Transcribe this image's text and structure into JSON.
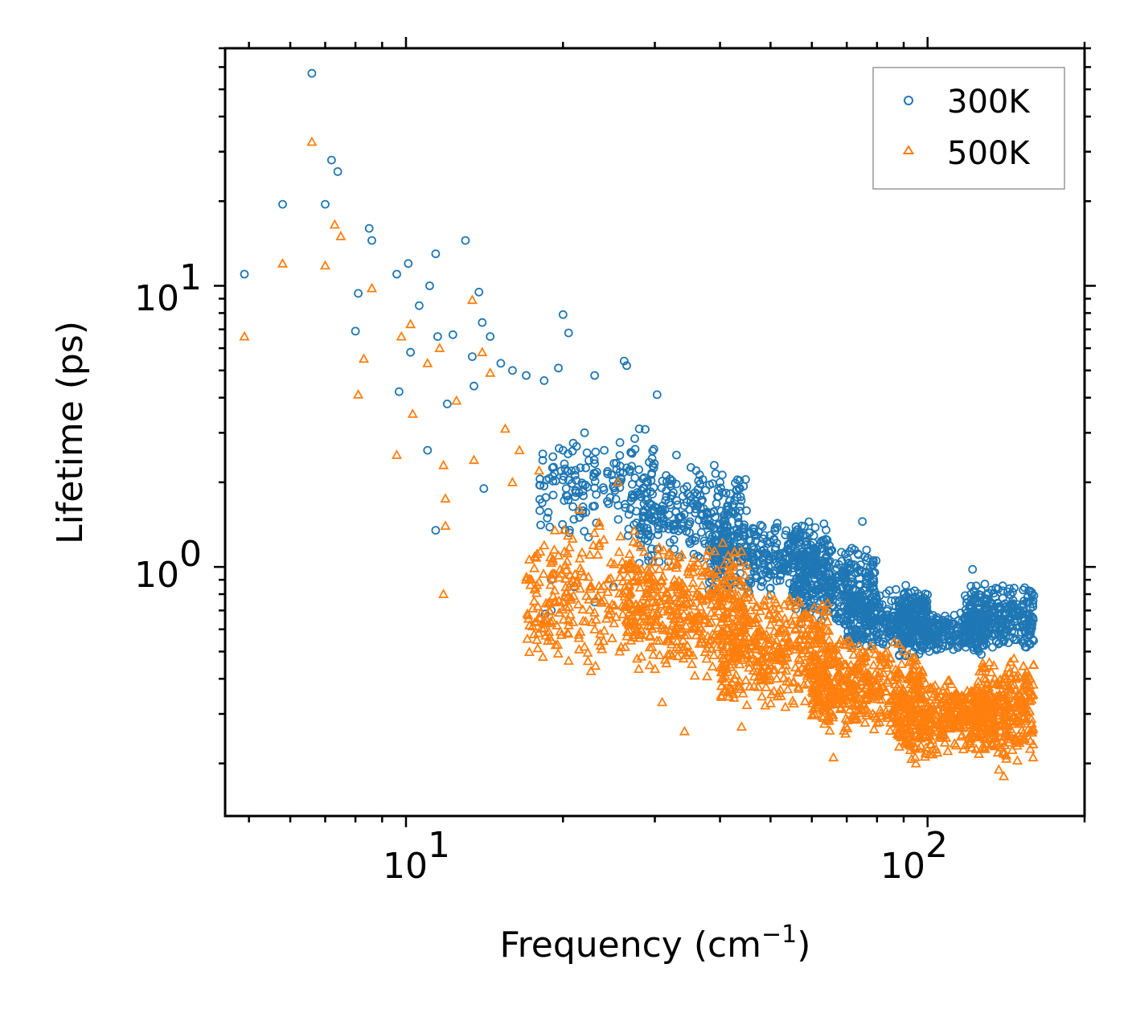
{
  "chart_data": {
    "type": "scatter",
    "xscale": "log",
    "yscale": "log",
    "xlim": [
      4.5,
      200
    ],
    "ylim": [
      0.13,
      70
    ],
    "xlabel": "Frequency (cm",
    "xlabel_sup": "−1",
    "xlabel_end": ")",
    "ylabel": "Lifetime (ps)",
    "x_ticks": [
      {
        "value": 10,
        "base": "10",
        "exp": "1"
      },
      {
        "value": 100,
        "base": "10",
        "exp": "2"
      }
    ],
    "y_ticks": [
      {
        "value": 1,
        "base": "10",
        "exp": "0"
      },
      {
        "value": 10,
        "base": "10",
        "exp": "1"
      }
    ],
    "legend": {
      "position": "top-right"
    },
    "series": [
      {
        "name": "300K",
        "marker": "circle",
        "color": "#1f77b4",
        "points": [
          [
            4.9,
            11.0
          ],
          [
            5.8,
            19.5
          ],
          [
            6.6,
            57.0
          ],
          [
            7.2,
            28.0
          ],
          [
            7.4,
            25.5
          ],
          [
            7.0,
            19.5
          ],
          [
            8.5,
            16.0
          ],
          [
            8.6,
            14.5
          ],
          [
            8.1,
            9.4
          ],
          [
            8.0,
            6.9
          ],
          [
            9.6,
            11.0
          ],
          [
            10.1,
            12.0
          ],
          [
            10.6,
            8.5
          ],
          [
            11.1,
            10.0
          ],
          [
            11.4,
            13.0
          ],
          [
            11.5,
            6.6
          ],
          [
            12.3,
            6.7
          ],
          [
            13.0,
            14.5
          ],
          [
            13.4,
            5.6
          ],
          [
            13.8,
            9.5
          ],
          [
            14.0,
            7.4
          ],
          [
            14.5,
            6.6
          ],
          [
            9.7,
            4.2
          ],
          [
            10.2,
            5.8
          ],
          [
            11.0,
            2.6
          ],
          [
            11.4,
            1.35
          ],
          [
            12.0,
            3.8
          ],
          [
            13.5,
            4.4
          ],
          [
            14.1,
            1.9
          ],
          [
            15.2,
            5.3
          ],
          [
            16.0,
            5.0
          ],
          [
            17.0,
            4.8
          ],
          [
            18.4,
            4.6
          ],
          [
            20.0,
            7.9
          ],
          [
            20.5,
            6.8
          ],
          [
            19.6,
            5.1
          ],
          [
            22.0,
            3.0
          ],
          [
            23.0,
            4.8
          ],
          [
            26.2,
            5.4
          ],
          [
            26.5,
            5.2
          ],
          [
            30.3,
            4.1
          ],
          [
            39.0,
            2.3
          ],
          [
            43.5,
            1.9
          ],
          [
            75.0,
            1.45
          ],
          [
            122.0,
            0.98
          ],
          [
            20.0,
            2.6
          ],
          [
            24.0,
            2.6
          ],
          [
            28.0,
            3.1
          ],
          [
            33.0,
            2.5
          ],
          [
            36.0,
            2.2
          ],
          [
            40.0,
            2.0
          ],
          [
            19.0,
            0.9
          ],
          [
            21.0,
            0.85
          ],
          [
            19.0,
            0.7
          ],
          [
            18.5,
            0.68
          ],
          [
            23.0,
            0.75
          ],
          [
            25.0,
            0.85
          ],
          [
            28.0,
            1.3
          ],
          [
            21.5,
            1.5
          ],
          [
            35.0,
            1.6
          ]
        ],
        "bands": [
          {
            "x": [
              18,
              30
            ],
            "y": [
              1.2,
              3.2
            ],
            "n": 170
          },
          {
            "x": [
              28,
              45
            ],
            "y": [
              1.0,
              2.3
            ],
            "n": 260
          },
          {
            "x": [
              38,
              65
            ],
            "y": [
              0.78,
              1.5
            ],
            "n": 380
          },
          {
            "x": [
              55,
              80
            ],
            "y": [
              0.6,
              1.2
            ],
            "n": 320
          },
          {
            "x": [
              70,
              100
            ],
            "y": [
              0.5,
              0.85
            ],
            "n": 320
          },
          {
            "x": [
              88,
              100
            ],
            "y": [
              0.45,
              0.9
            ],
            "n": 120
          },
          {
            "x": [
              100,
              130
            ],
            "y": [
              0.48,
              0.7
            ],
            "n": 200
          },
          {
            "x": [
              118,
              160
            ],
            "y": [
              0.5,
              0.88
            ],
            "n": 300
          }
        ]
      },
      {
        "name": "500K",
        "marker": "triangle",
        "color": "#ff7f0e",
        "points": [
          [
            4.9,
            6.6
          ],
          [
            5.8,
            12.0
          ],
          [
            6.6,
            32.5
          ],
          [
            7.0,
            11.8
          ],
          [
            7.3,
            16.5
          ],
          [
            7.5,
            15.0
          ],
          [
            8.6,
            9.8
          ],
          [
            8.1,
            4.1
          ],
          [
            8.3,
            5.5
          ],
          [
            9.6,
            2.5
          ],
          [
            9.8,
            6.6
          ],
          [
            10.2,
            7.3
          ],
          [
            10.3,
            3.5
          ],
          [
            11.0,
            5.3
          ],
          [
            11.6,
            6.0
          ],
          [
            11.8,
            2.3
          ],
          [
            11.9,
            1.75
          ],
          [
            11.8,
            0.8
          ],
          [
            11.9,
            1.4
          ],
          [
            12.5,
            3.9
          ],
          [
            13.4,
            8.9
          ],
          [
            14.0,
            5.8
          ],
          [
            13.5,
            2.4
          ],
          [
            14.5,
            4.9
          ],
          [
            15.5,
            3.1
          ],
          [
            16.0,
            2.0
          ],
          [
            16.5,
            2.6
          ],
          [
            18.0,
            2.2
          ],
          [
            21.5,
            1.6
          ],
          [
            19.0,
            0.63
          ],
          [
            22.0,
            0.52
          ],
          [
            31.0,
            0.33
          ],
          [
            34.2,
            0.26
          ],
          [
            44.0,
            0.27
          ],
          [
            66.0,
            0.21
          ],
          [
            95.0,
            0.2
          ],
          [
            137.0,
            0.19
          ],
          [
            140.0,
            0.18
          ],
          [
            25.5,
            2.0
          ],
          [
            23.5,
            1.4
          ],
          [
            20.0,
            0.75
          ],
          [
            17.0,
            0.9
          ]
        ],
        "bands": [
          {
            "x": [
              17,
              28
            ],
            "y": [
              0.42,
              1.5
            ],
            "n": 220
          },
          {
            "x": [
              26,
              45
            ],
            "y": [
              0.4,
              1.25
            ],
            "n": 420
          },
          {
            "x": [
              40,
              65
            ],
            "y": [
              0.3,
              0.85
            ],
            "n": 420
          },
          {
            "x": [
              60,
              90
            ],
            "y": [
              0.24,
              0.58
            ],
            "n": 380
          },
          {
            "x": [
              88,
              110
            ],
            "y": [
              0.2,
              0.42
            ],
            "n": 250
          },
          {
            "x": [
              92,
              98
            ],
            "y": [
              0.35,
              0.5
            ],
            "n": 40
          },
          {
            "x": [
              110,
              135
            ],
            "y": [
              0.22,
              0.4
            ],
            "n": 220
          },
          {
            "x": [
              125,
              160
            ],
            "y": [
              0.2,
              0.48
            ],
            "n": 280
          }
        ]
      }
    ]
  }
}
